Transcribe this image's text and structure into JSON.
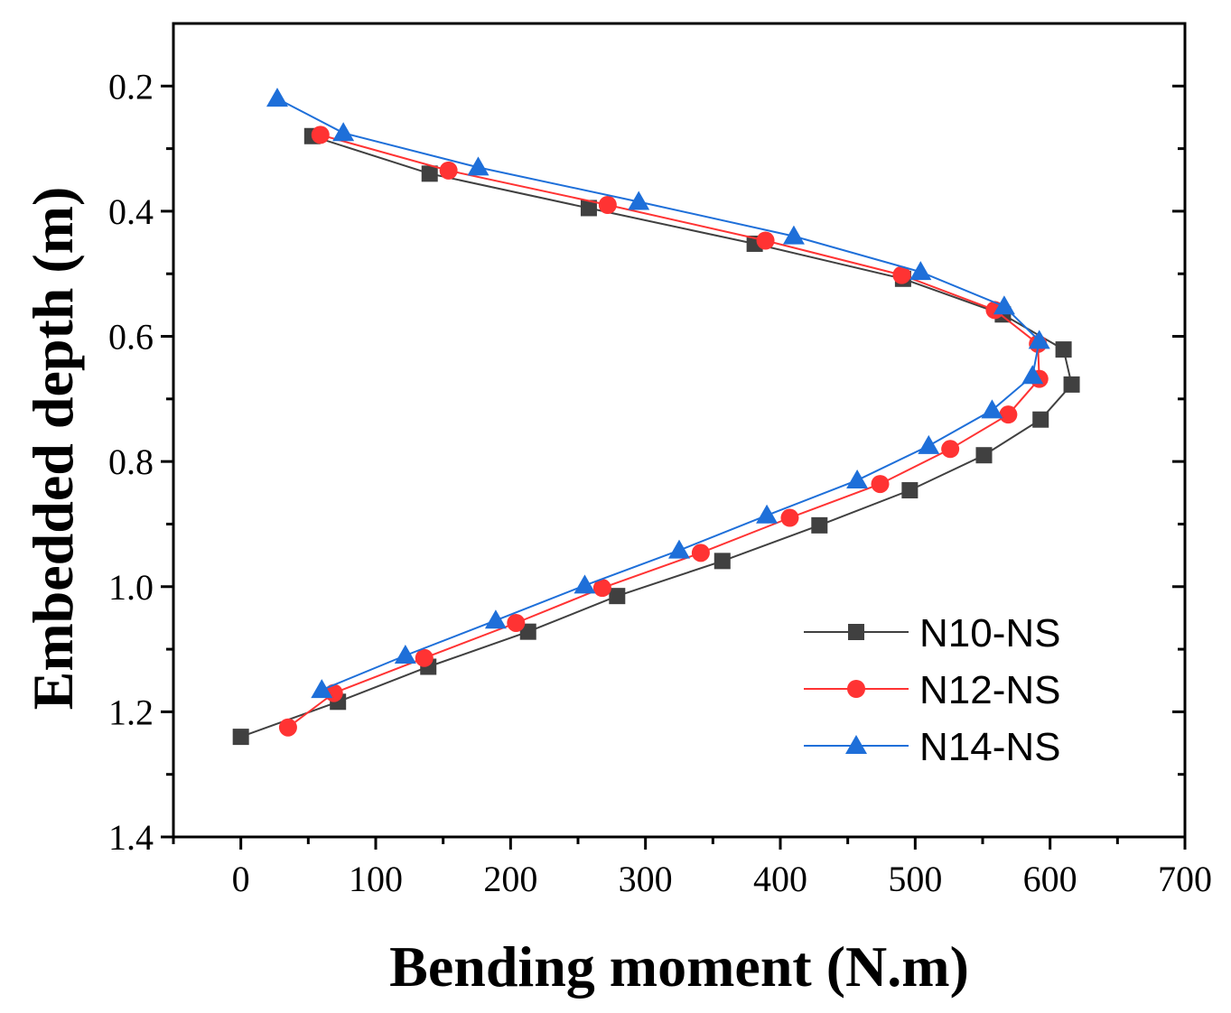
{
  "chart_data": {
    "type": "line",
    "title": "",
    "xlabel": "Bending moment (N.m)",
    "ylabel": "Embedded depth (m)",
    "xlim": [
      -50,
      700
    ],
    "ylim": [
      0.1,
      1.4
    ],
    "y_inverted": true,
    "xticks": [
      0,
      100,
      200,
      300,
      400,
      500,
      600,
      700
    ],
    "yticks": [
      0.2,
      0.4,
      0.6,
      0.8,
      1.0,
      1.2,
      1.4
    ],
    "xtick_labels": [
      "0",
      "100",
      "200",
      "300",
      "400",
      "500",
      "600",
      "700"
    ],
    "ytick_labels": [
      "0.2",
      "0.4",
      "0.6",
      "0.8",
      "1.0",
      "1.2",
      "1.4"
    ],
    "legend_position": "bottom-right",
    "series": [
      {
        "name": "N10-NS",
        "color": "#404040",
        "marker": "square",
        "x": [
          53,
          140,
          258,
          381,
          491,
          565,
          610,
          616,
          593,
          551,
          496,
          429,
          357,
          279,
          213,
          139,
          72,
          0
        ],
        "y": [
          0.28,
          0.34,
          0.395,
          0.452,
          0.508,
          0.565,
          0.621,
          0.677,
          0.733,
          0.79,
          0.846,
          0.902,
          0.959,
          1.015,
          1.072,
          1.128,
          1.184,
          1.24
        ]
      },
      {
        "name": "N12-NS",
        "color": "#ff3333",
        "marker": "circle",
        "x": [
          59,
          154,
          272,
          389,
          490,
          559,
          591,
          592,
          569,
          526,
          474,
          407,
          341,
          268,
          204,
          136,
          69,
          35
        ],
        "y": [
          0.278,
          0.335,
          0.39,
          0.447,
          0.502,
          0.558,
          0.612,
          0.668,
          0.725,
          0.78,
          0.836,
          0.89,
          0.946,
          1.002,
          1.058,
          1.114,
          1.17,
          1.225
        ]
      },
      {
        "name": "N14-NS",
        "color": "#1e6fd9",
        "marker": "triangle",
        "x": [
          27,
          76,
          176,
          295,
          410,
          504,
          566,
          592,
          587,
          557,
          510,
          457,
          390,
          325,
          255,
          189,
          122,
          60
        ],
        "y": [
          0.22,
          0.275,
          0.33,
          0.385,
          0.44,
          0.497,
          0.552,
          0.607,
          0.663,
          0.718,
          0.775,
          0.83,
          0.886,
          0.942,
          0.998,
          1.054,
          1.11,
          1.165
        ]
      }
    ]
  }
}
